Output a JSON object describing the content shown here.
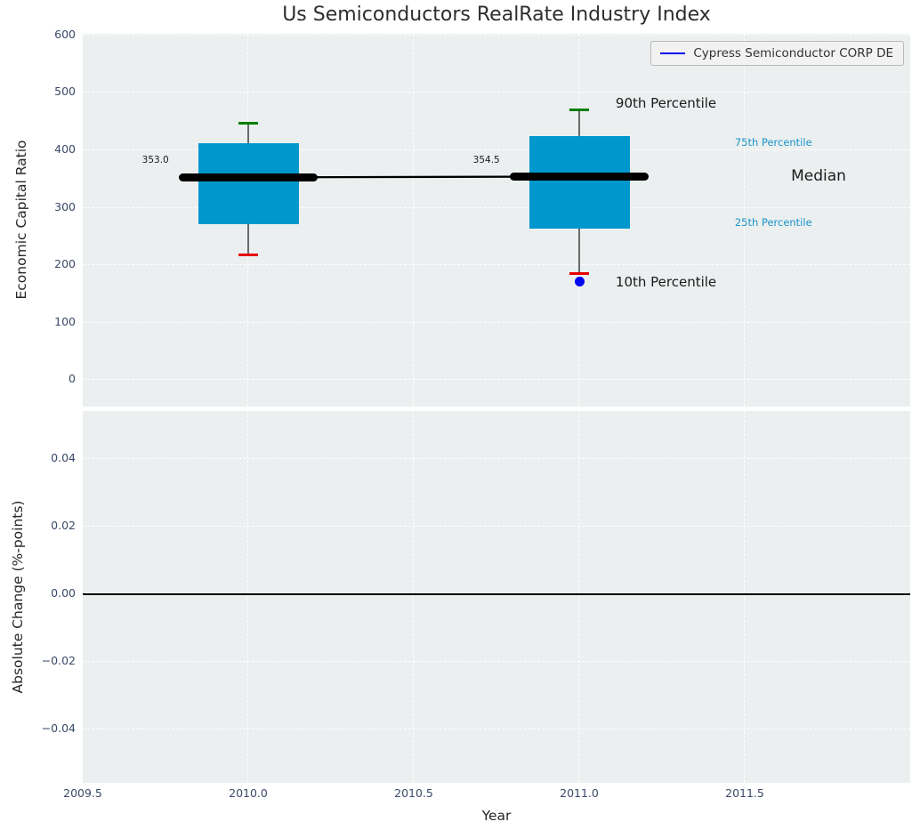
{
  "title": "Us Semiconductors RealRate Industry Index",
  "legend": {
    "label": "Cypress Semiconductor CORP DE",
    "line_color": "#0000ee"
  },
  "colors": {
    "plot_bg": "#eceff0",
    "grid": "#ffffff",
    "box_fill": "#0097cd",
    "cap_top": "#007d00",
    "cap_bottom": "#e60000",
    "whisker": "#6a6a6a",
    "median": "#000000",
    "company_point": "#0008f0",
    "tick_label": "#3b4a68",
    "percentile_label": "#1896c8",
    "annotation_text": "#1a1a1a",
    "zero_line": "#000000"
  },
  "chart_data": [
    {
      "type": "boxplot",
      "title": "Us Semiconductors RealRate Industry Index",
      "xlabel": "Year",
      "ylabel": "Economic Capital Ratio",
      "xlim": [
        2009.5,
        2012.0
      ],
      "ylim": [
        -46,
        603
      ],
      "grid": "white dashed, on",
      "legend_position": "upper right",
      "xticks": [
        {
          "label": "2009.5",
          "value": 2009.5
        },
        {
          "label": "2010.0",
          "value": 2010.0
        },
        {
          "label": "2010.5",
          "value": 2010.5
        },
        {
          "label": "2011.0",
          "value": 2011.0
        },
        {
          "label": "2011.5",
          "value": 2011.5
        }
      ],
      "yticks": [
        {
          "label": "600",
          "value": 600
        },
        {
          "label": "500",
          "value": 500
        },
        {
          "label": "400",
          "value": 400
        },
        {
          "label": "300",
          "value": 300
        },
        {
          "label": "200",
          "value": 200
        },
        {
          "label": "100",
          "value": 100
        },
        {
          "label": "0",
          "value": 0
        }
      ],
      "boxes": [
        {
          "x": 2010,
          "p10": 218,
          "q1": 271,
          "median": 353.0,
          "q3": 412,
          "p90": 448,
          "median_label": "353.0"
        },
        {
          "x": 2011,
          "p10": 186,
          "q1": 264,
          "median": 354.5,
          "q3": 425,
          "p90": 470,
          "median_label": "354.5"
        }
      ],
      "median_trend": [
        {
          "x": 2010,
          "y": 353.0
        },
        {
          "x": 2011,
          "y": 354.5
        }
      ],
      "company_series": {
        "name": "Cypress Semiconductor CORP DE",
        "points": [
          {
            "x": 2011,
            "y": 171
          }
        ]
      },
      "annotations": [
        {
          "text": "90th Percentile",
          "x": 2011.11,
          "y": 482,
          "align": "left",
          "size": 15,
          "color": "annotation_text"
        },
        {
          "text": "75th Percentile",
          "x": 2011.47,
          "y": 414,
          "align": "left",
          "size": 11.5,
          "color": "percentile_label"
        },
        {
          "text": "Median",
          "x": 2011.64,
          "y": 355,
          "align": "left",
          "size": 17,
          "color": "annotation_text"
        },
        {
          "text": "25th Percentile",
          "x": 2011.47,
          "y": 274,
          "align": "left",
          "size": 11.5,
          "color": "percentile_label"
        },
        {
          "text": "10th Percentile",
          "x": 2011.11,
          "y": 171,
          "align": "left",
          "size": 15,
          "color": "annotation_text"
        },
        {
          "text": "353.0",
          "x": 2009.76,
          "y": 383,
          "align": "right",
          "size": 10.5,
          "color": "annotation_text"
        },
        {
          "text": "354.5",
          "x": 2010.76,
          "y": 383,
          "align": "right",
          "size": 10.5,
          "color": "annotation_text"
        }
      ]
    },
    {
      "type": "line",
      "xlabel": "Year",
      "ylabel": "Absolute Change (%-points)",
      "xlim": [
        2009.5,
        2012.0
      ],
      "ylim": [
        -0.0558,
        0.0542
      ],
      "grid": "white dashed, on",
      "zero_line": 0.0,
      "yticks": [
        {
          "label": "0.04",
          "value": 0.04
        },
        {
          "label": "0.02",
          "value": 0.02
        },
        {
          "label": "0.00",
          "value": 0.0
        },
        {
          "label": "−0.02",
          "value": -0.02
        },
        {
          "label": "−0.04",
          "value": -0.04
        }
      ],
      "series": []
    }
  ]
}
